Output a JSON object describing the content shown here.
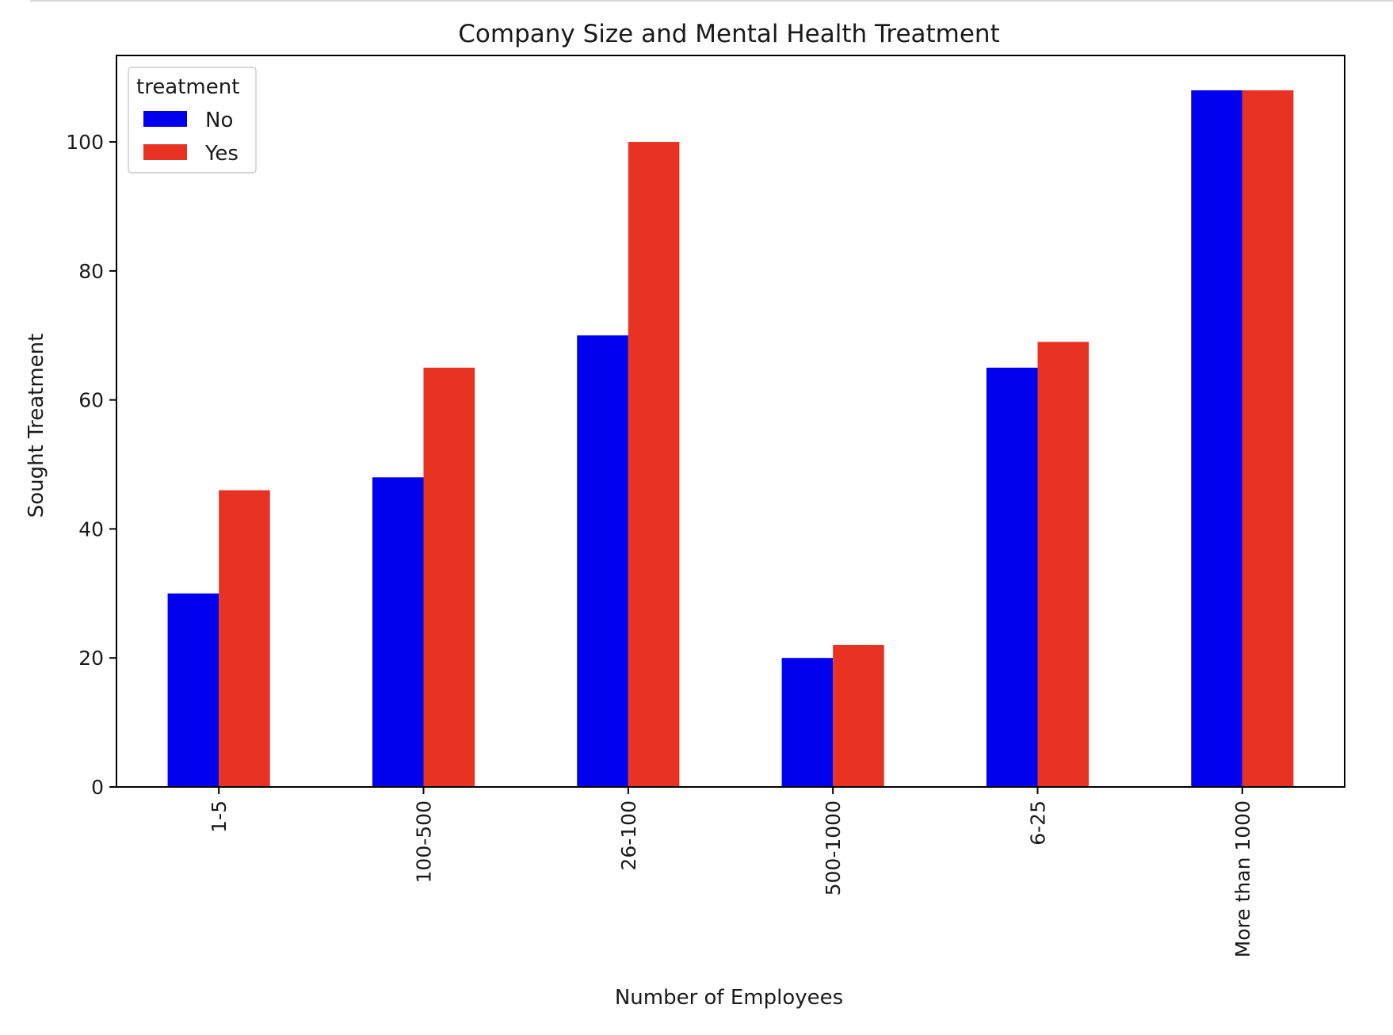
{
  "chart_data": {
    "type": "bar",
    "title": "Company Size and Mental Health Treatment",
    "xlabel": "Number of Employees",
    "ylabel": "Sought Treatment",
    "categories": [
      "1-5",
      "100-500",
      "26-100",
      "500-1000",
      "6-25",
      "More than 1000"
    ],
    "series": [
      {
        "name": "No",
        "color": "#0000ee",
        "values": [
          30,
          48,
          70,
          20,
          65,
          108
        ]
      },
      {
        "name": "Yes",
        "color": "#e83323",
        "values": [
          46,
          65,
          100,
          22,
          69,
          108
        ]
      }
    ],
    "ylim": [
      0,
      113.4
    ],
    "yticks": [
      0,
      20,
      40,
      60,
      80,
      100
    ],
    "grid": false,
    "legend": {
      "title": "treatment",
      "position": "top-left"
    }
  }
}
